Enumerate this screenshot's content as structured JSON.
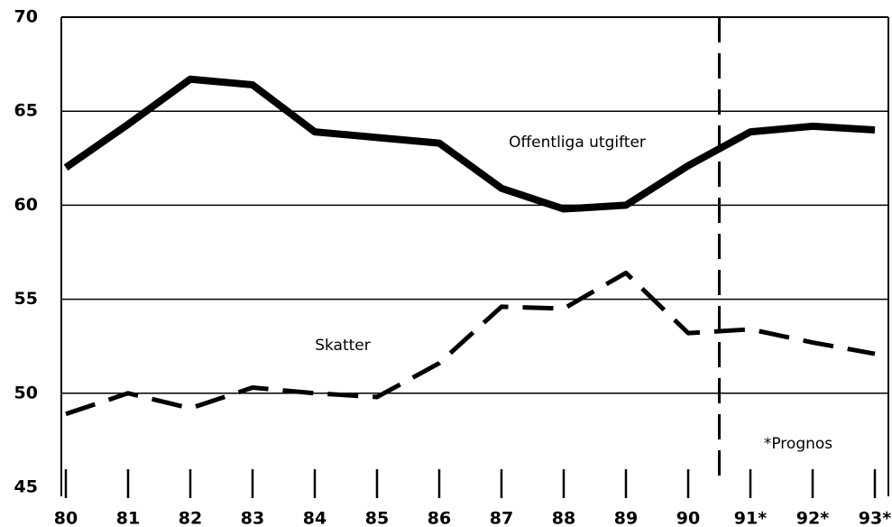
{
  "chart_data": {
    "type": "line",
    "categories": [
      "80",
      "81",
      "82",
      "83",
      "84",
      "85",
      "86",
      "87",
      "88",
      "89",
      "90",
      "91*",
      "92*",
      "93*"
    ],
    "series": [
      {
        "name": "Offentliga utgifter",
        "color": "#000000",
        "dash": false,
        "values": [
          62.0,
          64.3,
          66.7,
          66.4,
          63.9,
          63.6,
          63.3,
          60.9,
          59.8,
          60.0,
          62.1,
          63.9,
          64.2,
          64.0
        ]
      },
      {
        "name": "Skatter",
        "color": "#000000",
        "dash": true,
        "values": [
          48.9,
          50.0,
          49.2,
          50.3,
          50.0,
          49.8,
          51.6,
          54.6,
          54.5,
          56.4,
          53.2,
          53.4,
          52.7,
          52.1
        ]
      }
    ],
    "annotation": "*Prognos",
    "ylim": [
      45,
      70
    ],
    "yticks": [
      45,
      50,
      55,
      60,
      65,
      70
    ],
    "grid": true
  }
}
